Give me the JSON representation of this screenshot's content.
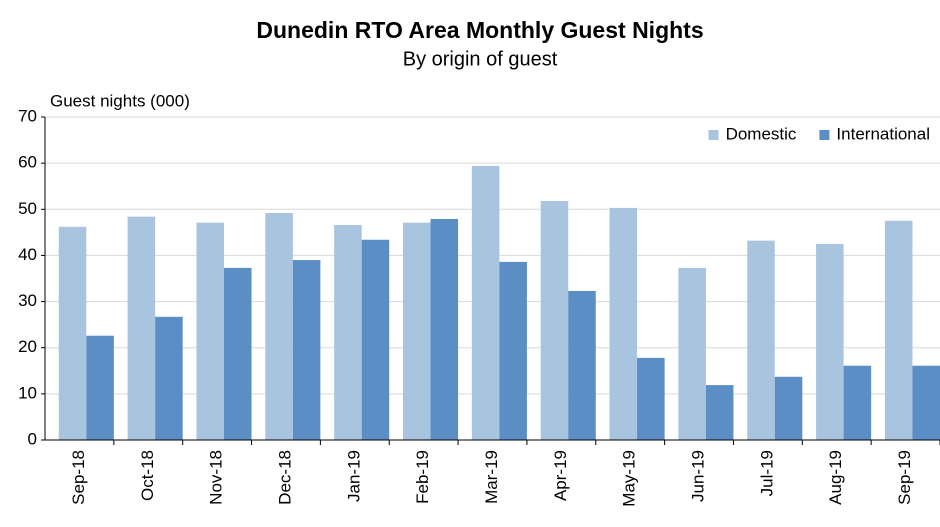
{
  "chart_data": {
    "type": "bar",
    "title": "Dunedin RTO Area Monthly Guest Nights",
    "subtitle": "By origin  of guest",
    "y_label": "Guest nights (000)",
    "categories": [
      "Sep-18",
      "Oct-18",
      "Nov-18",
      "Dec-18",
      "Jan-19",
      "Feb-19",
      "Mar-19",
      "Apr-19",
      "May-19",
      "Jun-19",
      "Jul-19",
      "Aug-19",
      "Sep-19"
    ],
    "series": [
      {
        "name": "Domestic",
        "color": "#a9c4de",
        "values": [
          46.2,
          48.4,
          47.1,
          49.2,
          46.6,
          47.1,
          59.4,
          51.8,
          50.3,
          37.3,
          43.2,
          42.5,
          47.5
        ]
      },
      {
        "name": "International",
        "color": "#5b8ec5",
        "values": [
          22.6,
          26.7,
          37.3,
          39.0,
          43.4,
          47.9,
          38.6,
          32.3,
          17.8,
          11.9,
          13.7,
          16.1,
          16.1
        ]
      }
    ],
    "ylim": [
      0,
      70
    ],
    "yticks": [
      0,
      10,
      20,
      30,
      40,
      50,
      60,
      70
    ],
    "grid": true,
    "legend": "top-right"
  }
}
